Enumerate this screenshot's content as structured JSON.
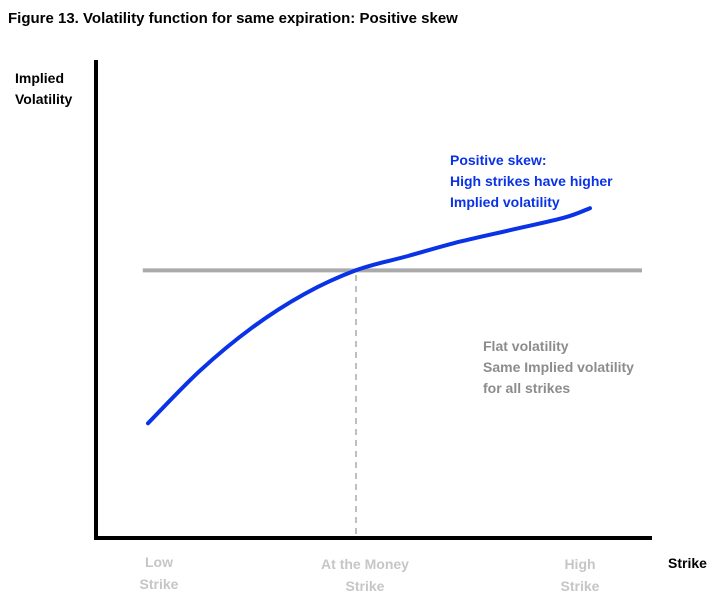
{
  "figure": {
    "title": "Figure 13. Volatility function for same expiration: Positive skew"
  },
  "chart_data": {
    "type": "line",
    "title": "Figure 13. Volatility function for same expiration: Positive skew",
    "ylabel_lines": [
      "Implied",
      "Volatility"
    ],
    "xlabel": "Strike",
    "x_ticks": [
      {
        "x": 0.1,
        "lines": [
          "Low",
          "Strike"
        ]
      },
      {
        "x": 0.5,
        "lines": [
          "At the Money",
          "Strike"
        ]
      },
      {
        "x": 0.9,
        "lines": [
          "High",
          "Strike"
        ]
      }
    ],
    "xlim": [
      0,
      1
    ],
    "ylim": [
      0,
      1
    ],
    "grid": false,
    "series": [
      {
        "color": "#0a32e6",
        "x": [
          0.1,
          0.2,
          0.3,
          0.4,
          0.5,
          0.6,
          0.7,
          0.8,
          0.9,
          0.95
        ],
        "y": [
          0.24,
          0.35,
          0.44,
          0.51,
          0.56,
          0.59,
          0.62,
          0.645,
          0.67,
          0.69
        ]
      },
      {
        "color": "#aaaaaa",
        "x": [
          0.09,
          1.05
        ],
        "y": [
          0.56,
          0.56
        ]
      }
    ],
    "reference_lines": [
      {
        "orientation": "vertical",
        "x": 0.5,
        "style": "dashed",
        "color": "#aaaaaa"
      }
    ],
    "annotations": [
      {
        "color": "#0a32e6",
        "lines": [
          "Positive skew:",
          "High strikes have higher",
          "Implied volatility"
        ]
      },
      {
        "color": "#8c8c8c",
        "lines": [
          "Flat volatility",
          "Same Implied volatility",
          "for all strikes"
        ]
      }
    ]
  }
}
